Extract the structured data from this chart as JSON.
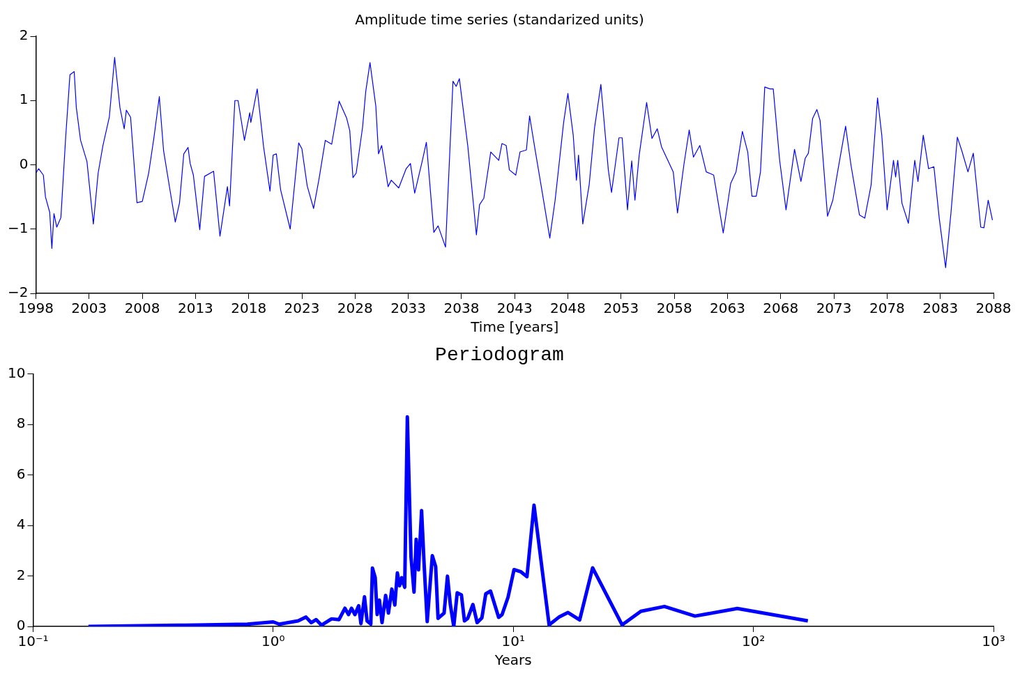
{
  "chart_data": [
    {
      "type": "line",
      "title": "Amplitude time series (standarized units)",
      "xlabel": "Time [years]",
      "x": [
        1998.0,
        1998.26,
        1998.7,
        1998.9,
        1999.3,
        1999.5,
        1999.7,
        1999.96,
        2000.35,
        2000.8,
        2001.2,
        2001.6,
        2001.8,
        2002.2,
        2002.8,
        2003.4,
        2003.85,
        2004.3,
        2004.9,
        2005.4,
        2005.9,
        2006.3,
        2006.5,
        2006.9,
        2007.5,
        2008.0,
        2008.6,
        2009.1,
        2009.6,
        2010.0,
        2010.6,
        2011.1,
        2011.5,
        2011.9,
        2012.3,
        2012.5,
        2012.8,
        2013.4,
        2013.85,
        2014.7,
        2015.3,
        2016.0,
        2016.2,
        2016.7,
        2017.0,
        2017.6,
        2018.1,
        2018.2,
        2018.8,
        2019.4,
        2020.0,
        2020.3,
        2020.6,
        2021.0,
        2021.9,
        2022.7,
        2023.0,
        2023.5,
        2024.1,
        2024.6,
        2025.2,
        2025.8,
        2026.5,
        2027.2,
        2027.5,
        2027.8,
        2028.1,
        2028.7,
        2029.0,
        2029.4,
        2029.95,
        2030.2,
        2030.5,
        2031.1,
        2031.4,
        2032.1,
        2032.8,
        2033.2,
        2033.6,
        2034.3,
        2034.7,
        2035.4,
        2035.8,
        2036.5,
        2037.2,
        2037.5,
        2037.8,
        2038.6,
        2039.4,
        2039.7,
        2040.1,
        2040.75,
        2041.5,
        2041.8,
        2042.2,
        2042.5,
        2043.1,
        2043.5,
        2044.1,
        2044.4,
        2044.9,
        2045.6,
        2046.3,
        2046.8,
        2047.6,
        2048.0,
        2048.5,
        2048.8,
        2049.0,
        2049.4,
        2050.0,
        2050.5,
        2051.1,
        2051.8,
        2052.1,
        2052.8,
        2053.1,
        2053.6,
        2054.0,
        2054.3,
        2054.7,
        2055.4,
        2055.9,
        2056.4,
        2056.8,
        2057.9,
        2058.3,
        2058.9,
        2059.4,
        2059.8,
        2060.4,
        2061.0,
        2061.7,
        2062.6,
        2063.3,
        2063.8,
        2064.4,
        2064.9,
        2065.3,
        2065.7,
        2066.1,
        2066.5,
        2067.0,
        2067.3,
        2067.9,
        2068.5,
        2069.3,
        2069.9,
        2070.3,
        2070.6,
        2071.0,
        2071.4,
        2071.7,
        2072.4,
        2072.9,
        2073.4,
        2074.1,
        2074.6,
        2075.4,
        2075.9,
        2076.5,
        2077.1,
        2077.5,
        2078.0,
        2078.6,
        2078.8,
        2079.0,
        2079.4,
        2080.0,
        2080.6,
        2080.9,
        2081.4,
        2081.9,
        2082.4,
        2082.9,
        2083.5,
        2084.0,
        2084.6,
        2085.0,
        2085.6,
        2086.1,
        2086.8,
        2087.1,
        2087.5,
        2087.9
      ],
      "series": [
        {
          "color": "#0000ff",
          "values": [
            -0.13,
            -0.06,
            -0.16,
            -0.5,
            -0.74,
            -1.3,
            -0.76,
            -0.97,
            -0.82,
            0.43,
            1.4,
            1.45,
            0.89,
            0.38,
            0.05,
            -0.92,
            -0.13,
            0.3,
            0.74,
            1.67,
            0.89,
            0.56,
            0.85,
            0.74,
            -0.59,
            -0.57,
            -0.13,
            0.43,
            1.06,
            0.22,
            -0.39,
            -0.89,
            -0.59,
            0.17,
            0.27,
            0.02,
            -0.16,
            -1.01,
            -0.18,
            -0.1,
            -1.11,
            -0.34,
            -0.64,
            1.0,
            1.0,
            0.38,
            0.81,
            0.66,
            1.18,
            0.28,
            -0.41,
            0.15,
            0.17,
            -0.39,
            -1.0,
            0.34,
            0.25,
            -0.33,
            -0.68,
            -0.23,
            0.38,
            0.32,
            0.99,
            0.73,
            0.53,
            -0.2,
            -0.13,
            0.58,
            1.14,
            1.59,
            0.91,
            0.17,
            0.3,
            -0.34,
            -0.24,
            -0.36,
            -0.06,
            0.02,
            -0.44,
            0.05,
            0.35,
            -1.05,
            -0.95,
            -1.28,
            1.3,
            1.22,
            1.34,
            0.28,
            -1.09,
            -0.62,
            -0.52,
            0.2,
            0.07,
            0.33,
            0.3,
            -0.08,
            -0.16,
            0.2,
            0.23,
            0.76,
            0.25,
            -0.44,
            -1.14,
            -0.55,
            0.66,
            1.11,
            0.46,
            -0.24,
            0.15,
            -0.92,
            -0.31,
            0.57,
            1.25,
            -0.08,
            -0.43,
            0.42,
            0.42,
            -0.7,
            0.06,
            -0.55,
            0.15,
            0.97,
            0.41,
            0.56,
            0.28,
            -0.11,
            -0.75,
            0.0,
            0.54,
            0.12,
            0.3,
            -0.11,
            -0.16,
            -1.06,
            -0.29,
            -0.11,
            0.52,
            0.2,
            -0.49,
            -0.49,
            -0.11,
            1.21,
            1.18,
            1.18,
            0.07,
            -0.7,
            0.24,
            -0.26,
            0.1,
            0.18,
            0.72,
            0.86,
            0.69,
            -0.8,
            -0.55,
            -0.06,
            0.6,
            0.0,
            -0.78,
            -0.83,
            -0.31,
            1.04,
            0.46,
            -0.7,
            0.07,
            -0.19,
            0.07,
            -0.6,
            -0.91,
            0.07,
            -0.26,
            0.46,
            -0.06,
            -0.03,
            -0.83,
            -1.6,
            -0.75,
            0.43,
            0.23,
            -0.11,
            0.18,
            -0.97,
            -0.98,
            -0.55,
            -0.86
          ]
        }
      ],
      "xlim": [
        1998,
        2088
      ],
      "xticks": [
        1998,
        2003,
        2008,
        2013,
        2018,
        2023,
        2028,
        2033,
        2038,
        2043,
        2048,
        2053,
        2058,
        2063,
        2068,
        2073,
        2078,
        2083,
        2088
      ],
      "ylim": [
        -2,
        2
      ],
      "yticks": [
        {
          "value": -2,
          "label": "−2"
        },
        {
          "value": -1,
          "label": "−1"
        },
        0,
        1,
        2
      ]
    },
    {
      "type": "line",
      "title": "Periodogram",
      "xlabel": "Years",
      "log": "x",
      "x": [
        0.17,
        0.43,
        0.78,
        1.0,
        1.06,
        1.27,
        1.37,
        1.44,
        1.51,
        1.59,
        1.75,
        1.88,
        1.99,
        2.06,
        2.12,
        2.19,
        2.27,
        2.32,
        2.4,
        2.46,
        2.55,
        2.59,
        2.66,
        2.71,
        2.77,
        2.84,
        2.94,
        3.02,
        3.12,
        3.21,
        3.29,
        3.36,
        3.43,
        3.53,
        3.62,
        3.75,
        3.86,
        3.94,
        4.03,
        4.15,
        4.25,
        4.38,
        4.6,
        4.75,
        4.86,
        5.15,
        5.32,
        5.47,
        5.65,
        5.84,
        6.08,
        6.26,
        6.46,
        6.79,
        7.07,
        7.4,
        7.68,
        8.04,
        8.69,
        8.98,
        9.51,
        10.07,
        10.77,
        11.4,
        12.2,
        14.1,
        15.5,
        16.9,
        18.9,
        21.4,
        28.4,
        34.0,
        42.6,
        57.1,
        85.7,
        168.6
      ],
      "series": [
        {
          "color": "#0000ff",
          "values": [
            0,
            0.05,
            0.09,
            0.18,
            0.09,
            0.22,
            0.37,
            0.15,
            0.27,
            0.05,
            0.3,
            0.27,
            0.72,
            0.47,
            0.72,
            0.47,
            0.82,
            0.11,
            1.17,
            0.22,
            0.09,
            2.31,
            1.93,
            0.47,
            1.04,
            0.15,
            1.23,
            0.53,
            1.48,
            0.85,
            2.12,
            1.61,
            1.93,
            1.55,
            8.3,
            2.75,
            1.36,
            3.45,
            2.24,
            4.59,
            2.5,
            0.19,
            2.8,
            2.37,
            0.32,
            0.53,
            1.99,
            0.85,
            0,
            1.33,
            1.25,
            0.22,
            0.32,
            0.87,
            0.15,
            0.34,
            1.29,
            1.4,
            0.36,
            0.47,
            1.16,
            2.25,
            2.16,
            1.97,
            4.8,
            0.06,
            0.37,
            0.55,
            0.26,
            2.32,
            0.06,
            0.6,
            0.79,
            0.41,
            0.71,
            0.22
          ]
        }
      ],
      "xlim": [
        0.1,
        1000
      ],
      "xticks": [
        {
          "value": 0.1,
          "label": "10⁻¹"
        },
        {
          "value": 1,
          "label": "10⁰"
        },
        {
          "value": 10,
          "label": "10¹"
        },
        {
          "value": 100,
          "label": "10²"
        },
        {
          "value": 1000,
          "label": "10³"
        }
      ],
      "ylim": [
        0,
        10
      ],
      "yticks": [
        0,
        2,
        4,
        6,
        8,
        10
      ]
    }
  ]
}
